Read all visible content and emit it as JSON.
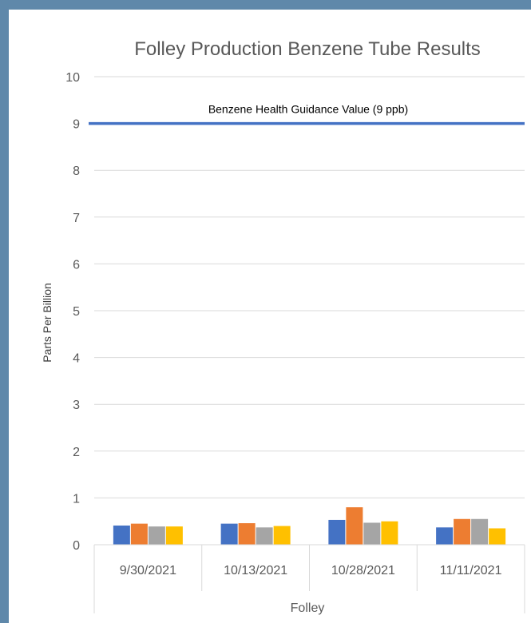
{
  "chart_data": {
    "type": "bar",
    "title": "Folley Production Benzene Tube Results",
    "ylabel": "Parts Per Billion",
    "group_label": "Folley",
    "ylim": [
      0,
      10
    ],
    "yticks": [
      0,
      1,
      2,
      3,
      4,
      5,
      6,
      7,
      8,
      9,
      10
    ],
    "grid": true,
    "categories": [
      "9/30/2021",
      "10/13/2021",
      "10/28/2021",
      "11/11/2021"
    ],
    "series": [
      {
        "color": "#4472c4",
        "values": [
          0.41,
          0.45,
          0.53,
          0.37
        ]
      },
      {
        "color": "#ed7d31",
        "values": [
          0.45,
          0.46,
          0.8,
          0.55
        ]
      },
      {
        "color": "#a5a5a5",
        "values": [
          0.39,
          0.37,
          0.47,
          0.55
        ]
      },
      {
        "color": "#ffc000",
        "values": [
          0.39,
          0.4,
          0.5,
          0.35
        ]
      }
    ],
    "reference_line": {
      "label": "Benzene Health Guidance Value (9 ppb)",
      "value": 9,
      "color": "#4472c4"
    }
  }
}
